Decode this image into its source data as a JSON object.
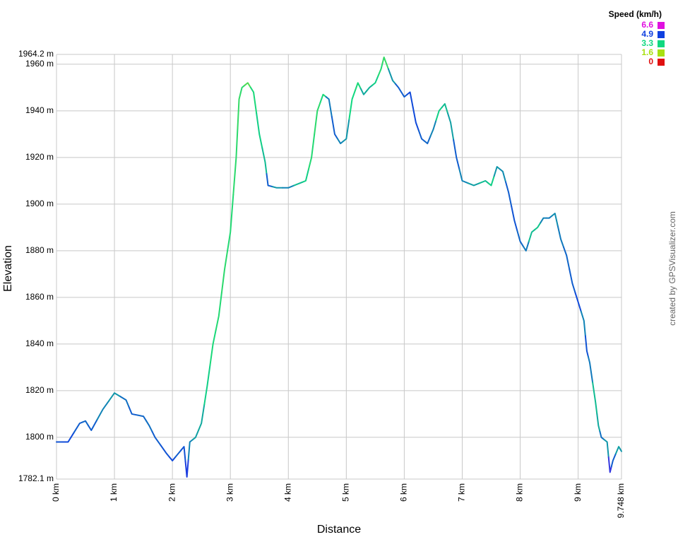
{
  "chart_data": {
    "type": "speed-colored-line",
    "x_title": "Distance",
    "y_title": "Elevation",
    "credit": "created by GPSVisualizer.com",
    "xlim": [
      0,
      9.748
    ],
    "xticks": [
      {
        "value": 0,
        "label": "0 km"
      },
      {
        "value": 1,
        "label": "1 km"
      },
      {
        "value": 2,
        "label": "2 km"
      },
      {
        "value": 3,
        "label": "3 km"
      },
      {
        "value": 4,
        "label": "4 km"
      },
      {
        "value": 5,
        "label": "5 km"
      },
      {
        "value": 6,
        "label": "6 km"
      },
      {
        "value": 7,
        "label": "7 km"
      },
      {
        "value": 8,
        "label": "8 km"
      },
      {
        "value": 9,
        "label": "9 km"
      },
      {
        "value": 9.748,
        "label": "9.748 km"
      }
    ],
    "ylim": [
      1782.1,
      1964.2
    ],
    "yticks": [
      {
        "value": 1782.1,
        "label": "1782.1 m"
      },
      {
        "value": 1800,
        "label": "1800 m"
      },
      {
        "value": 1820,
        "label": "1820 m"
      },
      {
        "value": 1840,
        "label": "1840 m"
      },
      {
        "value": 1860,
        "label": "1860 m"
      },
      {
        "value": 1880,
        "label": "1880 m"
      },
      {
        "value": 1900,
        "label": "1900 m"
      },
      {
        "value": 1920,
        "label": "1920 m"
      },
      {
        "value": 1940,
        "label": "1940 m"
      },
      {
        "value": 1960,
        "label": "1960 m"
      },
      {
        "value": 1964.2,
        "label": "1964.2 m"
      }
    ],
    "grid": true,
    "color_scale": {
      "title": "Speed (km/h)",
      "stops": [
        {
          "value": 6.6,
          "color": "#e010e0"
        },
        {
          "value": 4.9,
          "color": "#1040e0"
        },
        {
          "value": 3.3,
          "color": "#10d880"
        },
        {
          "value": 1.6,
          "color": "#a8e010"
        },
        {
          "value": 0.0,
          "color": "#e01010"
        }
      ]
    },
    "x": [
      0,
      0.2,
      0.4,
      0.5,
      0.6,
      0.8,
      1.0,
      1.2,
      1.3,
      1.5,
      1.6,
      1.7,
      1.9,
      2.0,
      2.1,
      2.2,
      2.25,
      2.3,
      2.4,
      2.5,
      2.6,
      2.7,
      2.8,
      2.9,
      3.0,
      3.1,
      3.15,
      3.2,
      3.3,
      3.4,
      3.5,
      3.6,
      3.65,
      3.8,
      4.0,
      4.2,
      4.3,
      4.4,
      4.5,
      4.6,
      4.7,
      4.8,
      4.9,
      5.0,
      5.1,
      5.2,
      5.3,
      5.4,
      5.5,
      5.6,
      5.65,
      5.8,
      5.9,
      6.0,
      6.1,
      6.2,
      6.3,
      6.4,
      6.5,
      6.6,
      6.7,
      6.8,
      6.9,
      7.0,
      7.2,
      7.4,
      7.5,
      7.6,
      7.7,
      7.8,
      7.9,
      8.0,
      8.1,
      8.2,
      8.3,
      8.4,
      8.5,
      8.6,
      8.7,
      8.8,
      8.9,
      9.0,
      9.1,
      9.15,
      9.2,
      9.3,
      9.35,
      9.4,
      9.5,
      9.55,
      9.6,
      9.7,
      9.748
    ],
    "values": [
      1798,
      1798,
      1806,
      1807,
      1803,
      1812,
      1819,
      1816,
      1810,
      1809,
      1805,
      1800,
      1793,
      1790,
      1793,
      1796,
      1783,
      1798,
      1800,
      1806,
      1822,
      1840,
      1852,
      1872,
      1888,
      1920,
      1945,
      1950,
      1952,
      1948,
      1930,
      1918,
      1908,
      1907,
      1907,
      1909,
      1910,
      1920,
      1940,
      1947,
      1945,
      1930,
      1926,
      1928,
      1945,
      1952,
      1947,
      1950,
      1952,
      1958,
      1963,
      1953,
      1950,
      1946,
      1948,
      1935,
      1928,
      1926,
      1932,
      1940,
      1943,
      1935,
      1920,
      1910,
      1908,
      1910,
      1908,
      1916,
      1914,
      1905,
      1893,
      1884,
      1880,
      1888,
      1890,
      1894,
      1894,
      1896,
      1885,
      1878,
      1866,
      1858,
      1850,
      1837,
      1832,
      1815,
      1805,
      1800,
      1798,
      1785,
      1790,
      1796,
      1794
    ],
    "speeds": [
      4.7,
      4.8,
      4.6,
      4.5,
      4.6,
      4.2,
      4.0,
      4.4,
      4.6,
      4.5,
      4.4,
      4.6,
      4.7,
      4.8,
      4.6,
      4.7,
      5.0,
      4.2,
      3.9,
      3.8,
      3.4,
      3.2,
      3.1,
      3.0,
      3.1,
      3.0,
      2.9,
      3.0,
      2.6,
      3.2,
      3.4,
      3.6,
      4.6,
      4.0,
      4.2,
      3.6,
      3.4,
      3.1,
      3.0,
      3.2,
      4.3,
      4.6,
      4.2,
      4.0,
      3.3,
      3.2,
      3.8,
      3.7,
      3.4,
      3.1,
      2.9,
      4.0,
      4.6,
      4.6,
      4.8,
      4.8,
      4.6,
      4.5,
      4.2,
      3.4,
      3.6,
      3.9,
      4.6,
      4.2,
      3.9,
      3.6,
      3.4,
      4.0,
      4.1,
      4.6,
      4.7,
      4.5,
      4.3,
      3.6,
      3.5,
      4.2,
      4.3,
      4.1,
      4.3,
      4.5,
      4.6,
      4.8,
      4.2,
      4.7,
      4.3,
      3.6,
      3.8,
      4.4,
      4.0,
      5.2,
      4.6,
      3.9,
      4.0
    ]
  }
}
